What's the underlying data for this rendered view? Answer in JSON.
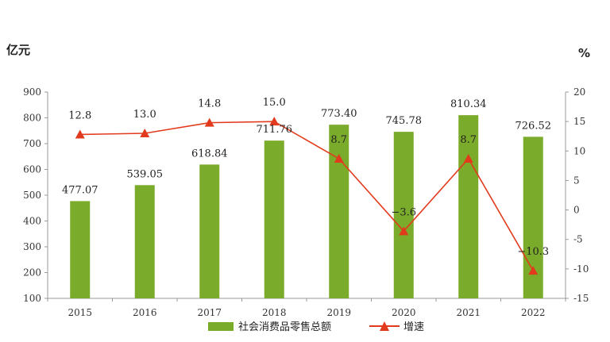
{
  "chart_data": {
    "type": "bar",
    "categories": [
      "2015",
      "2016",
      "2017",
      "2018",
      "2019",
      "2020",
      "2021",
      "2022"
    ],
    "series": [
      {
        "name": "社会消费品零售总额",
        "type": "bar",
        "axis": "left",
        "values": [
          477.07,
          539.05,
          618.84,
          711.76,
          773.4,
          745.78,
          810.34,
          726.52
        ],
        "labels": [
          "477.07",
          "539.05",
          "618.84",
          "711.76",
          "773.40",
          "745.78",
          "810.34",
          "726.52"
        ]
      },
      {
        "name": "增速",
        "type": "line",
        "axis": "right",
        "values": [
          12.8,
          13.0,
          14.8,
          15.0,
          8.7,
          -3.6,
          8.7,
          -10.3
        ],
        "labels": [
          "12.8",
          "13.0",
          "14.8",
          "15.0",
          "8.7",
          "−3.6",
          "8.7",
          "−10.3"
        ]
      }
    ],
    "ylabel": "亿元",
    "y2label": "%",
    "ylim": [
      100,
      900
    ],
    "y2lim": [
      -15,
      20
    ],
    "yticks": [
      100,
      200,
      300,
      400,
      500,
      600,
      700,
      800,
      900
    ],
    "y2ticks": [
      -15,
      -10,
      -5,
      0,
      5,
      10,
      15,
      20
    ],
    "grid": false,
    "legend": "bottom",
    "colors": {
      "bar": "#7bab2a",
      "line": "#e23a1c",
      "axis": "#999999"
    }
  }
}
